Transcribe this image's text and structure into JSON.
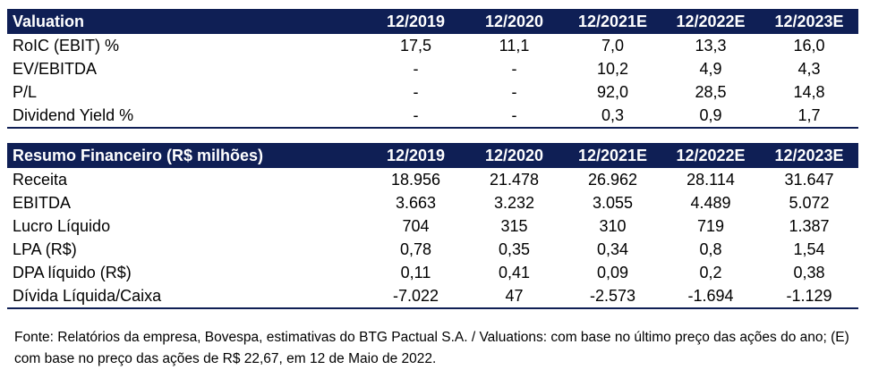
{
  "valuation": {
    "header": [
      "Valuation",
      "12/2019",
      "12/2020",
      "12/2021E",
      "12/2022E",
      "12/2023E"
    ],
    "rows": [
      [
        "RoIC (EBIT) %",
        "17,5",
        "11,1",
        "7,0",
        "13,3",
        "16,0"
      ],
      [
        "EV/EBITDA",
        "-",
        "-",
        "10,2",
        "4,9",
        "4,3"
      ],
      [
        "P/L",
        "-",
        "-",
        "92,0",
        "28,5",
        "14,8"
      ],
      [
        "Dividend Yield %",
        "-",
        "-",
        "0,3",
        "0,9",
        "1,7"
      ]
    ]
  },
  "financeiro": {
    "header": [
      "Resumo Financeiro (R$ milhões)",
      "12/2019",
      "12/2020",
      "12/2021E",
      "12/2022E",
      "12/2023E"
    ],
    "rows": [
      [
        "Receita",
        "18.956",
        "21.478",
        "26.962",
        "28.114",
        "31.647"
      ],
      [
        "EBITDA",
        "3.663",
        "3.232",
        "3.055",
        "4.489",
        "5.072"
      ],
      [
        "Lucro Líquido",
        "704",
        "315",
        "310",
        "719",
        "1.387"
      ],
      [
        "LPA (R$)",
        "0,78",
        "0,35",
        "0,34",
        "0,8",
        "1,54"
      ],
      [
        "DPA líquido (R$)",
        "0,11",
        "0,41",
        "0,09",
        "0,2",
        "0,38"
      ],
      [
        "Dívida Líquida/Caixa",
        "-7.022",
        "47",
        "-2.573",
        "-1.694",
        "-1.129"
      ]
    ]
  },
  "footnote": "Fonte: Relatórios da empresa, Bovespa, estimativas do BTG Pactual S.A. / Valuations: com base no último preço das ações do ano; (E) com base no preço das ações de R$ 22,67, em 12 de Maio de 2022."
}
